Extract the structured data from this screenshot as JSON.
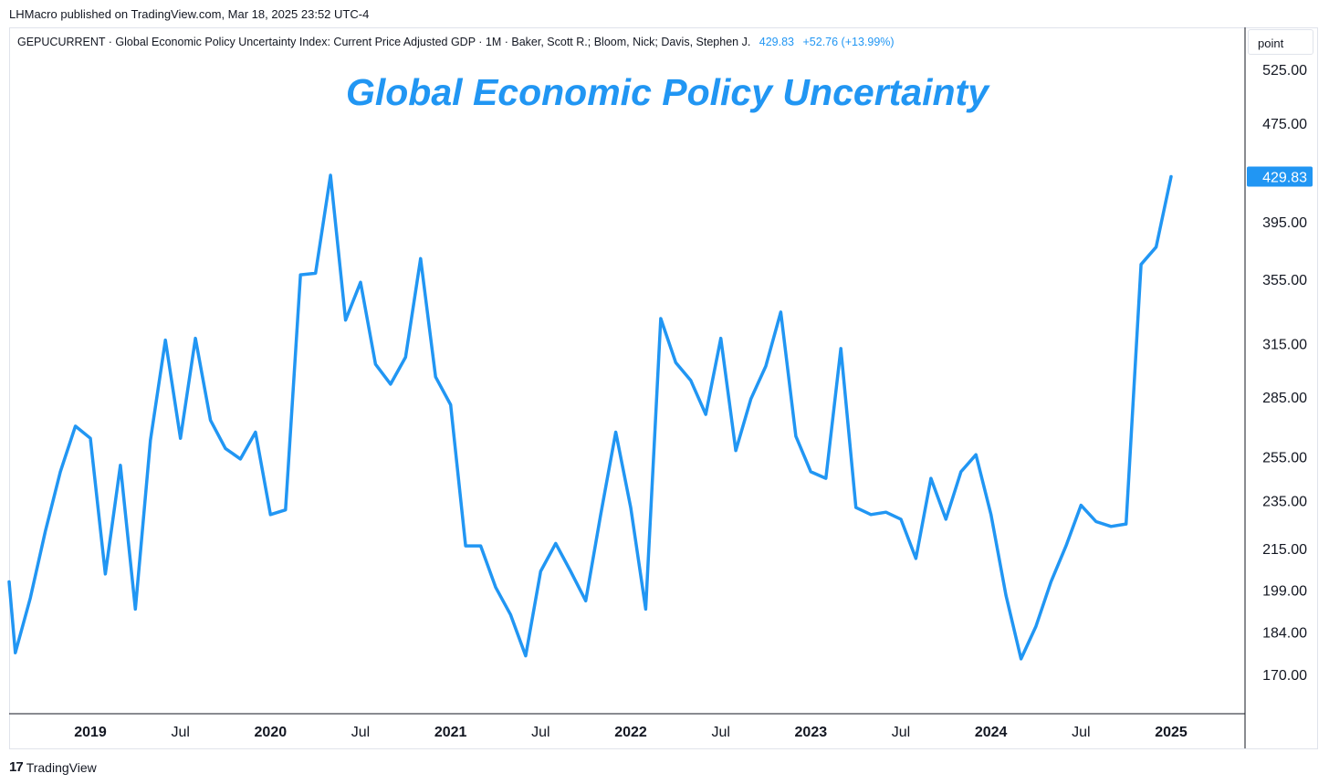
{
  "header": {
    "published": "LHMacro published on TradingView.com, Mar 18, 2025 23:52 UTC-4"
  },
  "symbol": {
    "description": "GEPUCURRENT · Global Economic Policy Uncertainty Index: Current Price Adjusted GDP · 1M · Baker, Scott R.; Bloom, Nick; Davis, Stephen J.",
    "last": "429.83",
    "change": "+52.76 (+13.99%)"
  },
  "scale_unit": "point",
  "footer": {
    "brand": "TradingView"
  },
  "colors": {
    "line": "#2196f3",
    "axis": "#131722",
    "grid": "#e0e3eb",
    "badge_text": "#ffffff"
  },
  "chart_data": {
    "type": "line",
    "title": "Global Economic Policy Uncertainty",
    "xlabel": "",
    "ylabel": "point",
    "scale": "log",
    "ylim": [
      158,
      560
    ],
    "series": [
      {
        "name": "GEPUCURRENT",
        "x": [
          "2018-07",
          "2018-08",
          "2018-09",
          "2018-10",
          "2018-11",
          "2018-12",
          "2019-01",
          "2019-02",
          "2019-03",
          "2019-04",
          "2019-05",
          "2019-06",
          "2019-07",
          "2019-08",
          "2019-09",
          "2019-10",
          "2019-11",
          "2019-12",
          "2020-01",
          "2020-02",
          "2020-03",
          "2020-04",
          "2020-05",
          "2020-06",
          "2020-07",
          "2020-08",
          "2020-09",
          "2020-10",
          "2020-11",
          "2020-12",
          "2021-01",
          "2021-02",
          "2021-03",
          "2021-04",
          "2021-05",
          "2021-06",
          "2021-07",
          "2021-08",
          "2021-09",
          "2021-10",
          "2021-11",
          "2021-12",
          "2022-01",
          "2022-02",
          "2022-03",
          "2022-04",
          "2022-05",
          "2022-06",
          "2022-07",
          "2022-08",
          "2022-09",
          "2022-10",
          "2022-11",
          "2022-12",
          "2023-01",
          "2023-02",
          "2023-03",
          "2023-04",
          "2023-05",
          "2023-06",
          "2023-07",
          "2023-08",
          "2023-09",
          "2023-10",
          "2023-11",
          "2023-12",
          "2024-01",
          "2024-02",
          "2024-03",
          "2024-04",
          "2024-05",
          "2024-06",
          "2024-07",
          "2024-08",
          "2024-09",
          "2024-10",
          "2024-11",
          "2024-12",
          "2025-01"
        ],
        "values": [
          202,
          177,
          196,
          222,
          248,
          270,
          264,
          205,
          251,
          192,
          263,
          317,
          264,
          318,
          273,
          259,
          254,
          267,
          229,
          231,
          358,
          359,
          431,
          329,
          353,
          303,
          292,
          307,
          369,
          296,
          281,
          216,
          216,
          200,
          190,
          176,
          206,
          217,
          206,
          195,
          229,
          267,
          232,
          192,
          330,
          304,
          294,
          276,
          318,
          258,
          284,
          302,
          334,
          265,
          248,
          245,
          312,
          232,
          229,
          230,
          227,
          211,
          245,
          227,
          248,
          256,
          229,
          197,
          175,
          186,
          202,
          216,
          233,
          226,
          224,
          225,
          365,
          377,
          429.83
        ]
      }
    ],
    "y_ticks": [
      "525.00",
      "475.00",
      "395.00",
      "355.00",
      "315.00",
      "285.00",
      "255.00",
      "235.00",
      "215.00",
      "199.00",
      "184.00",
      "170.00"
    ],
    "x_ticks": [
      {
        "date": "2019-01",
        "label": "2019",
        "bold": true
      },
      {
        "date": "2019-07",
        "label": "Jul",
        "bold": false
      },
      {
        "date": "2020-01",
        "label": "2020",
        "bold": true
      },
      {
        "date": "2020-07",
        "label": "Jul",
        "bold": false
      },
      {
        "date": "2021-01",
        "label": "2021",
        "bold": true
      },
      {
        "date": "2021-07",
        "label": "Jul",
        "bold": false
      },
      {
        "date": "2022-01",
        "label": "2022",
        "bold": true
      },
      {
        "date": "2022-07",
        "label": "Jul",
        "bold": false
      },
      {
        "date": "2023-01",
        "label": "2023",
        "bold": true
      },
      {
        "date": "2023-07",
        "label": "Jul",
        "bold": false
      },
      {
        "date": "2024-01",
        "label": "2024",
        "bold": true
      },
      {
        "date": "2024-07",
        "label": "Jul",
        "bold": false
      },
      {
        "date": "2025-01",
        "label": "2025",
        "bold": true
      }
    ],
    "last_value_label": "429.83"
  }
}
